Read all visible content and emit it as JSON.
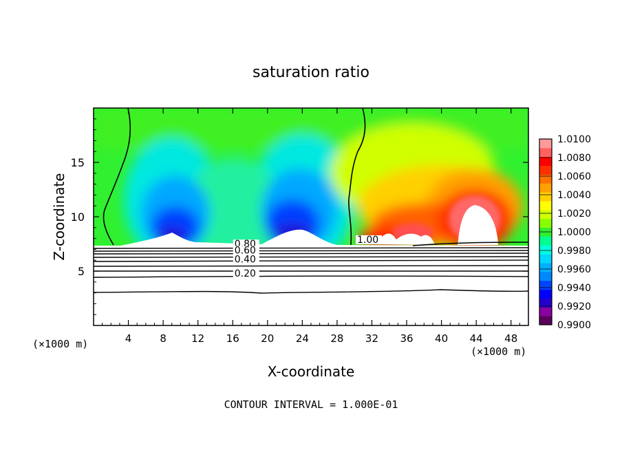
{
  "chart_data": {
    "type": "heatmap",
    "title": "saturation ratio",
    "xlabel": "X-coordinate",
    "ylabel": "Z-coordinate",
    "x_unit_left": "(×1000 m)",
    "x_unit_right": "(×1000 m)",
    "footer": "CONTOUR INTERVAL = 1.000E-01",
    "xlim": [
      0,
      50
    ],
    "ylim": [
      0,
      20
    ],
    "x_ticks": [
      4,
      8,
      12,
      16,
      20,
      24,
      28,
      32,
      36,
      40,
      44,
      48
    ],
    "y_ticks": [
      5,
      10,
      15
    ],
    "colorbar": {
      "min": 0.99,
      "max": 1.01,
      "labels": [
        "1.0100",
        "1.0080",
        "1.0060",
        "1.0040",
        "1.0020",
        "1.0000",
        "0.9980",
        "0.9960",
        "0.9940",
        "0.9920",
        "0.9900"
      ],
      "colors": [
        "#5a005a",
        "#8a00a0",
        "#2200cc",
        "#0000ff",
        "#0044ff",
        "#0088ff",
        "#00b0ff",
        "#00d8ff",
        "#00ffe0",
        "#00ff90",
        "#30f030",
        "#88ff00",
        "#d0ff00",
        "#ffff00",
        "#ffd000",
        "#ffa000",
        "#ff7000",
        "#ff3000",
        "#ff0000",
        "#ff6060",
        "#ff9a9a"
      ]
    },
    "contour_labels": [
      {
        "text": "1.00",
        "x": 30.3,
        "z": 7.6
      },
      {
        "text": "0.80",
        "x": 16.2,
        "z": 7.2
      },
      {
        "text": "0.60",
        "x": 16.2,
        "z": 6.6
      },
      {
        "text": "0.40",
        "x": 16.2,
        "z": 5.8
      },
      {
        "text": "0.20",
        "x": 16.2,
        "z": 4.5
      }
    ]
  }
}
